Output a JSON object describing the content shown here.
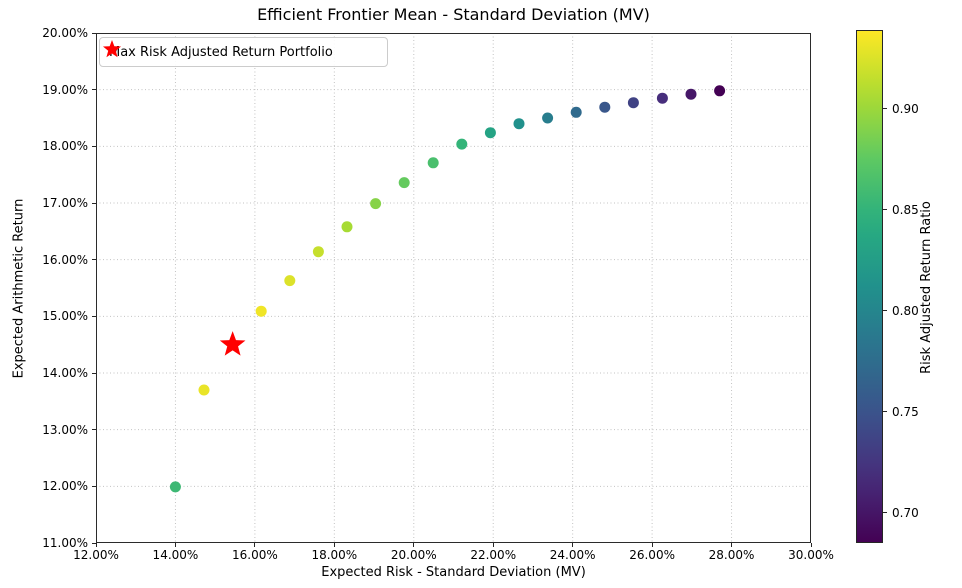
{
  "chart_data": {
    "type": "scatter",
    "title": "Efficient Frontier Mean - Standard Deviation (MV)",
    "xlabel": "Expected Risk - Standard Deviation (MV)",
    "ylabel": "Expected Arithmetic Return",
    "legend_label": "Max Risk Adjusted Return Portfolio",
    "xlim": [
      12,
      30
    ],
    "ylim": [
      11,
      20
    ],
    "grid": true,
    "x_ticks": [
      {
        "value": 12,
        "label": "12.00%"
      },
      {
        "value": 14,
        "label": "14.00%"
      },
      {
        "value": 16,
        "label": "16.00%"
      },
      {
        "value": 18,
        "label": "18.00%"
      },
      {
        "value": 20,
        "label": "20.00%"
      },
      {
        "value": 22,
        "label": "22.00%"
      },
      {
        "value": 24,
        "label": "24.00%"
      },
      {
        "value": 26,
        "label": "26.00%"
      },
      {
        "value": 28,
        "label": "28.00%"
      },
      {
        "value": 30,
        "label": "30.00%"
      }
    ],
    "y_ticks": [
      {
        "value": 11,
        "label": "11.00%"
      },
      {
        "value": 12,
        "label": "12.00%"
      },
      {
        "value": 13,
        "label": "13.00%"
      },
      {
        "value": 14,
        "label": "14.00%"
      },
      {
        "value": 15,
        "label": "15.00%"
      },
      {
        "value": 16,
        "label": "16.00%"
      },
      {
        "value": 17,
        "label": "17.00%"
      },
      {
        "value": 18,
        "label": "18.00%"
      },
      {
        "value": 19,
        "label": "19.00%"
      },
      {
        "value": 20,
        "label": "20.00%"
      }
    ],
    "points": [
      {
        "risk": 14.0,
        "ret": 11.99,
        "ratio": 0.856
      },
      {
        "risk": 14.72,
        "ret": 13.7,
        "ratio": 0.931
      },
      {
        "risk": 16.16,
        "ret": 15.09,
        "ratio": 0.934
      },
      {
        "risk": 16.88,
        "ret": 15.63,
        "ratio": 0.926
      },
      {
        "risk": 17.6,
        "ret": 16.14,
        "ratio": 0.917
      },
      {
        "risk": 18.32,
        "ret": 16.58,
        "ratio": 0.905
      },
      {
        "risk": 19.04,
        "ret": 16.99,
        "ratio": 0.892
      },
      {
        "risk": 19.76,
        "ret": 17.36,
        "ratio": 0.878
      },
      {
        "risk": 20.49,
        "ret": 17.71,
        "ratio": 0.864
      },
      {
        "risk": 21.21,
        "ret": 18.04,
        "ratio": 0.851
      },
      {
        "risk": 21.93,
        "ret": 18.24,
        "ratio": 0.832
      },
      {
        "risk": 22.65,
        "ret": 18.4,
        "ratio": 0.812
      },
      {
        "risk": 23.37,
        "ret": 18.5,
        "ratio": 0.792
      },
      {
        "risk": 24.09,
        "ret": 18.6,
        "ratio": 0.772
      },
      {
        "risk": 24.81,
        "ret": 18.69,
        "ratio": 0.753
      },
      {
        "risk": 25.53,
        "ret": 18.77,
        "ratio": 0.735
      },
      {
        "risk": 26.26,
        "ret": 18.85,
        "ratio": 0.718
      },
      {
        "risk": 26.98,
        "ret": 18.92,
        "ratio": 0.701
      },
      {
        "risk": 27.7,
        "ret": 18.98,
        "ratio": 0.685
      }
    ],
    "star_point": {
      "risk": 15.44,
      "ret": 14.5,
      "ratio": 0.939,
      "color": "#ff0000"
    },
    "colorbar": {
      "label": "Risk Adjusted Return Ratio",
      "colormap": "viridis",
      "vmin": 0.685,
      "vmax": 0.939,
      "ticks": [
        {
          "value": 0.9,
          "label": "0.90"
        },
        {
          "value": 0.85,
          "label": "0.85"
        },
        {
          "value": 0.8,
          "label": "0.80"
        },
        {
          "value": 0.75,
          "label": "0.75"
        },
        {
          "value": 0.7,
          "label": "0.70"
        }
      ]
    },
    "style": {
      "grid_color": "#c3c3c3",
      "spine_color": "#2b2b2b",
      "dot_radius": 5.5,
      "star_outer_radius": 13.5
    }
  }
}
